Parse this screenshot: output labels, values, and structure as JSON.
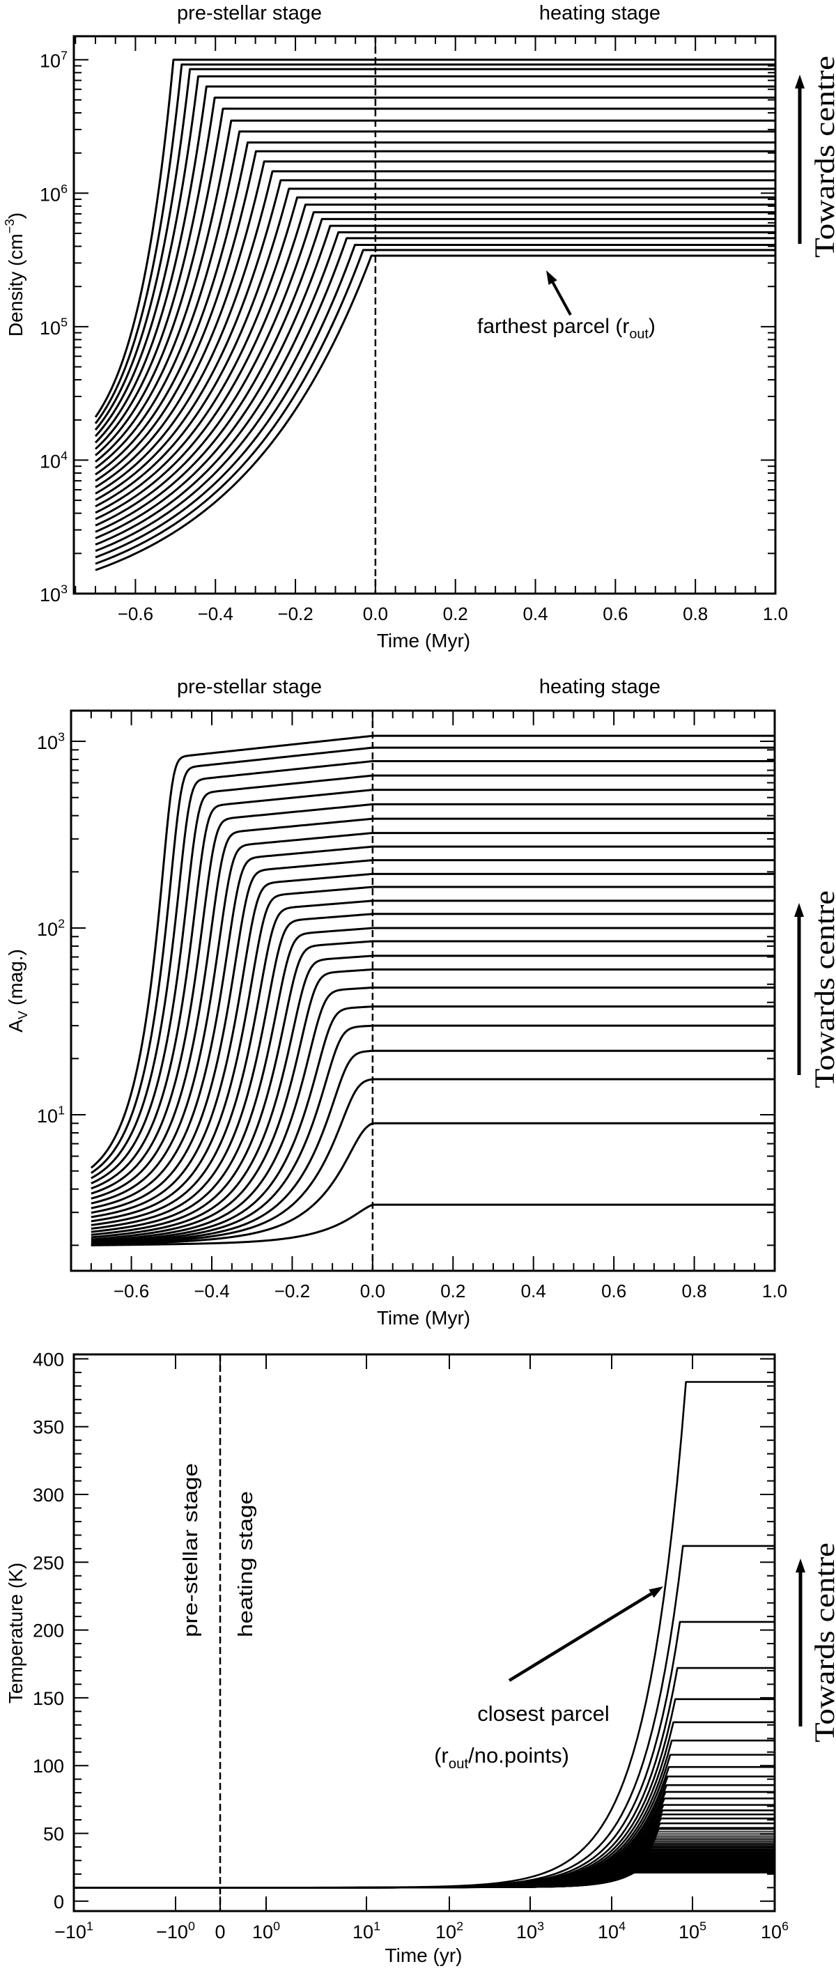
{
  "colors": {
    "background": "#ffffff",
    "ink": "#000000"
  },
  "chart_data": [
    {
      "type": "line",
      "xlabel": "Time (Myr)",
      "ylabel": {
        "text": "Density (cm",
        "sup": "−3",
        "close": ")"
      },
      "xscale": "linear",
      "yscale": "log",
      "xlim": [
        -0.754,
        1.0
      ],
      "ylim": [
        1000,
        15000000
      ],
      "xticks": [
        -0.6,
        -0.4,
        -0.2,
        0.0,
        0.2,
        0.4,
        0.6,
        0.8,
        1.0
      ],
      "xtick_labels": [
        "−0.6",
        "−0.4",
        "−0.2",
        "0.0",
        "0.2",
        "0.4",
        "0.6",
        "0.8",
        "1.0"
      ],
      "yticks": [
        {
          "value": 1000,
          "base": "10",
          "exp": "3"
        },
        {
          "value": 10000,
          "base": "10",
          "exp": "4"
        },
        {
          "value": 100000,
          "base": "10",
          "exp": "5"
        },
        {
          "value": 1000000,
          "base": "10",
          "exp": "6"
        },
        {
          "value": 10000000,
          "base": "10",
          "exp": "7"
        }
      ],
      "dashed_vline_at": 0,
      "stage_labels": [
        "pre-stellar stage",
        "heating stage"
      ],
      "direction_label": "Towards centre",
      "annotation": {
        "text": "farthest parcel (r",
        "sub": "out",
        "close": ")"
      },
      "series": {
        "count": 25,
        "start_time": -0.7,
        "start_value": {
          "innermost": 21000,
          "outermost": 1500
        },
        "collapse_end_time": {
          "innermost": -0.505,
          "outermost": -0.01
        },
        "plateau_values": [
          10000000,
          9200000,
          8500000,
          7500000,
          6300000,
          5200000,
          4300000,
          3500000,
          2900000,
          2400000,
          2060000,
          1730000,
          1460000,
          1250000,
          1080000,
          930000,
          820000,
          720000,
          640000,
          570000,
          510000,
          460000,
          410000,
          375000,
          340000
        ]
      }
    },
    {
      "type": "line",
      "xlabel": "Time (Myr)",
      "ylabel": {
        "text": "A",
        "sub": "V",
        "close": " (mag.)"
      },
      "xscale": "linear",
      "yscale": "log",
      "xlim": [
        -0.75,
        1.0
      ],
      "ylim": [
        1.46,
        1460
      ],
      "xticks": [
        -0.6,
        -0.4,
        -0.2,
        0.0,
        0.2,
        0.4,
        0.6,
        0.8,
        1.0
      ],
      "xtick_labels": [
        "−0.6",
        "−0.4",
        "−0.2",
        "0.0",
        "0.2",
        "0.4",
        "0.6",
        "0.8",
        "1.0"
      ],
      "yticks": [
        {
          "value": 10,
          "base": "10",
          "exp": "1"
        },
        {
          "value": 100,
          "base": "10",
          "exp": "2"
        },
        {
          "value": 1000,
          "base": "10",
          "exp": "3"
        }
      ],
      "dashed_vline_at": 0,
      "stage_labels": [
        "pre-stellar stage",
        "heating stage"
      ],
      "direction_label": "Towards centre",
      "series": {
        "count": 25,
        "start_time": -0.7,
        "start_value": {
          "innermost": 5.2,
          "outermost": 2.0
        },
        "rise_end_time": {
          "innermost": -0.505,
          "outermost": -0.01
        },
        "plateau_values": [
          1070,
          925,
          783,
          656,
          550,
          460,
          385,
          323,
          273,
          231,
          195,
          166,
          140,
          119,
          100,
          85,
          71,
          60,
          48,
          38,
          30,
          22,
          15.5,
          9.0,
          3.3
        ]
      }
    },
    {
      "type": "line",
      "xlabel": "Time (yr)",
      "ylabel": {
        "text": "Temperature (K)"
      },
      "xscale": "symlog",
      "yscale": "linear",
      "xlim": [
        -10,
        1000000
      ],
      "ylim": [
        -7.3,
        403.3
      ],
      "xticks": [
        {
          "value": -10,
          "base": "−10",
          "exp": "1"
        },
        {
          "value": -1,
          "base": "−10",
          "exp": "0"
        },
        {
          "value": 0,
          "base": "0",
          "exp": ""
        },
        {
          "value": 1,
          "base": "10",
          "exp": "0"
        },
        {
          "value": 10,
          "base": "10",
          "exp": "1"
        },
        {
          "value": 100,
          "base": "10",
          "exp": "2"
        },
        {
          "value": 1000,
          "base": "10",
          "exp": "3"
        },
        {
          "value": 10000,
          "base": "10",
          "exp": "4"
        },
        {
          "value": 100000,
          "base": "10",
          "exp": "5"
        },
        {
          "value": 1000000,
          "base": "10",
          "exp": "6"
        }
      ],
      "yticks": [
        0,
        50,
        100,
        150,
        200,
        250,
        300,
        350,
        400
      ],
      "ytick_labels": [
        "0",
        "50",
        "100",
        "150",
        "200",
        "250",
        "300",
        "350",
        "400"
      ],
      "dashed_vline_at": 0,
      "stage_labels": [
        "pre-stellar stage",
        "heating stage"
      ],
      "direction_label": "Towards centre",
      "annotation": {
        "line1": "closest parcel",
        "open": "(r",
        "sub": "out",
        "rest": "/no.points)"
      },
      "series": {
        "initial_temperature_K": 10,
        "plateau_values_K": [
          383,
          262,
          206,
          172,
          149,
          132,
          118.5,
          108,
          99,
          92,
          85.6,
          80.6,
          75.8,
          71,
          67,
          64,
          61,
          57.4,
          54
        ],
        "dense_band": {
          "count": 81,
          "max_K": 53,
          "min_K": 20.8
        },
        "plateau_onset_yr": {
          "innermost": 83000,
          "outermost": 19000
        }
      }
    }
  ]
}
